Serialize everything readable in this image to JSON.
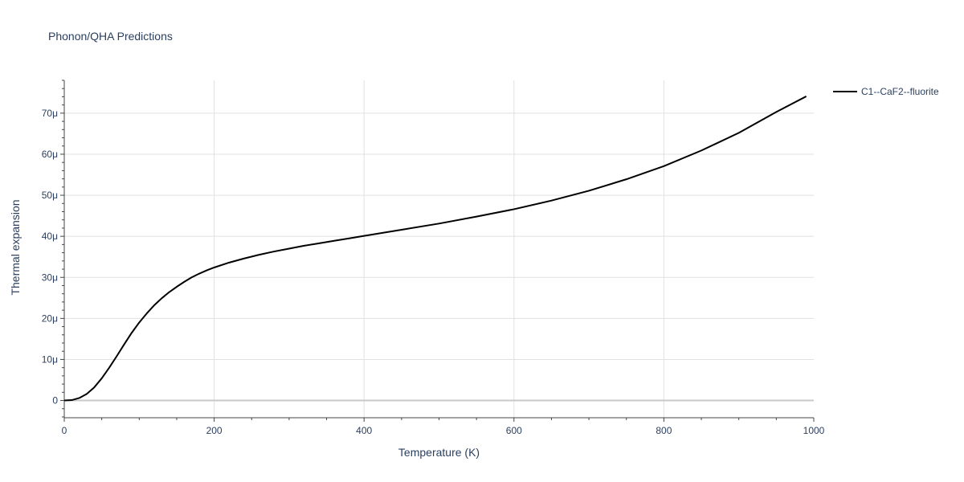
{
  "title": "Phonon/QHA Predictions",
  "chart_data": {
    "type": "line",
    "title": "Phonon/QHA Predictions",
    "xlabel": "Temperature (K)",
    "ylabel": "Thermal expansion",
    "xlim": [
      0,
      1000
    ],
    "ylim": [
      -4.2e-06,
      7.8e-05
    ],
    "x_ticks": [
      0,
      200,
      400,
      600,
      800,
      1000
    ],
    "x_tick_labels": [
      "0",
      "200",
      "400",
      "600",
      "800",
      "1000"
    ],
    "y_ticks": [
      0,
      1e-05,
      2e-05,
      3e-05,
      4e-05,
      5e-05,
      6e-05,
      7e-05
    ],
    "y_tick_labels": [
      "0",
      "10μ",
      "20μ",
      "30μ",
      "40μ",
      "50μ",
      "60μ",
      "70μ"
    ],
    "grid": true,
    "legend_position": "top-right",
    "series": [
      {
        "name": "C1--CaF2--fluorite",
        "color": "#000000",
        "x": [
          0,
          10,
          20,
          30,
          40,
          50,
          60,
          70,
          80,
          90,
          100,
          110,
          120,
          130,
          140,
          150,
          160,
          170,
          180,
          190,
          200,
          220,
          240,
          260,
          280,
          300,
          320,
          340,
          360,
          380,
          400,
          450,
          500,
          550,
          600,
          650,
          700,
          750,
          800,
          850,
          900,
          950,
          990
        ],
        "y": [
          0,
          1e-07,
          6e-07,
          1.6e-06,
          3.2e-06,
          5.4e-06,
          8e-06,
          1.08e-05,
          1.37e-05,
          1.65e-05,
          1.9e-05,
          2.12e-05,
          2.32e-05,
          2.49e-05,
          2.64e-05,
          2.77e-05,
          2.89e-05,
          3e-05,
          3.09e-05,
          3.17e-05,
          3.24e-05,
          3.36e-05,
          3.46e-05,
          3.55e-05,
          3.63e-05,
          3.7e-05,
          3.77e-05,
          3.83e-05,
          3.89e-05,
          3.95e-05,
          4.01e-05,
          4.16e-05,
          4.31e-05,
          4.48e-05,
          4.66e-05,
          4.87e-05,
          5.11e-05,
          5.39e-05,
          5.71e-05,
          6.09e-05,
          6.52e-05,
          7.03e-05,
          7.41e-05
        ]
      }
    ]
  }
}
